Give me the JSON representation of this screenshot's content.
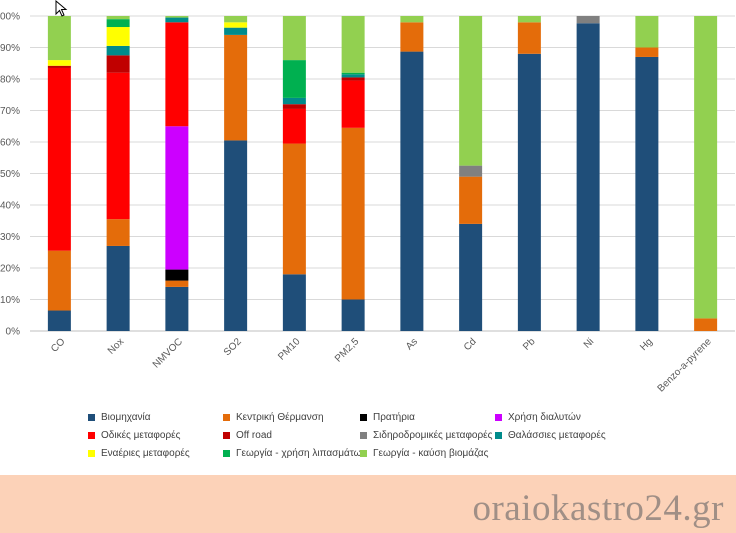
{
  "chart_data": {
    "type": "bar",
    "stacked": true,
    "percent": true,
    "title": "",
    "xlabel": "",
    "ylabel": "",
    "ylim": [
      0,
      100
    ],
    "yticks": [
      "0%",
      "10%",
      "20%",
      "30%",
      "40%",
      "50%",
      "60%",
      "70%",
      "80%",
      "90%",
      "100%"
    ],
    "grid": true,
    "legend_position": "bottom",
    "categories": [
      "CO",
      "Nox",
      "NMVOC",
      "SO2",
      "PM10",
      "PM2,5",
      "As",
      "Cd",
      "Pb",
      "Ni",
      "Hg",
      "Benzo-a-pyrene"
    ],
    "series": [
      {
        "name": "Βιομηχανία",
        "color": "#1f4e79",
        "values": [
          6.5,
          27,
          14,
          60.5,
          18,
          10,
          88.7,
          34,
          88,
          97.7,
          87,
          0
        ]
      },
      {
        "name": "Κεντρική Θέρμανση",
        "color": "#e46c0a",
        "values": [
          19,
          8.5,
          2,
          33.5,
          41.5,
          54.5,
          9.3,
          15,
          10,
          0,
          3,
          4
        ]
      },
      {
        "name": "Πρατήρια",
        "color": "#000000",
        "values": [
          0,
          0,
          3.5,
          0,
          0,
          0,
          0,
          0,
          0,
          0,
          0,
          0
        ]
      },
      {
        "name": "Χρήση διαλυτών",
        "color": "#cc00ff",
        "values": [
          0,
          0,
          45.5,
          0,
          0,
          0,
          0,
          0,
          0,
          0,
          0,
          0
        ]
      },
      {
        "name": "Οδικές μεταφορές",
        "color": "#ff0000",
        "values": [
          58,
          46.5,
          33,
          0,
          11,
          15,
          0,
          0,
          0,
          0,
          0,
          0
        ]
      },
      {
        "name": "Off road",
        "color": "#c00000",
        "values": [
          0.7,
          5.5,
          0,
          0,
          1.5,
          1,
          0,
          0,
          0,
          0,
          0,
          0
        ]
      },
      {
        "name": "Σιδηροδρομικές μεταφορές",
        "color": "#808080",
        "values": [
          0,
          0,
          0,
          0,
          0,
          0,
          0,
          3.5,
          0,
          2.3,
          0,
          0
        ]
      },
      {
        "name": "Θαλάσσιες μεταφορές",
        "color": "#008b8b",
        "values": [
          0,
          3,
          1.5,
          2.3,
          2,
          1,
          0,
          0,
          0,
          0,
          0,
          0
        ]
      },
      {
        "name": "Εναέριες μεταφορές",
        "color": "#ffff00",
        "values": [
          1.8,
          6,
          0,
          1.7,
          0,
          0,
          0,
          0,
          0,
          0,
          0,
          0
        ]
      },
      {
        "name": "Γεωργία - χρήση λιπασμάτων",
        "color": "#00b050",
        "values": [
          0,
          2.5,
          0,
          0,
          12,
          0.5,
          0,
          0,
          0,
          0,
          0,
          0
        ]
      },
      {
        "name": "Γεωργία - καύση βιομάζας",
        "color": "#92d050",
        "values": [
          14,
          1,
          0.5,
          2,
          14,
          18,
          2,
          47.5,
          2,
          0,
          10,
          96
        ]
      }
    ]
  },
  "watermark": {
    "text": "oraiokastro24.gr"
  }
}
